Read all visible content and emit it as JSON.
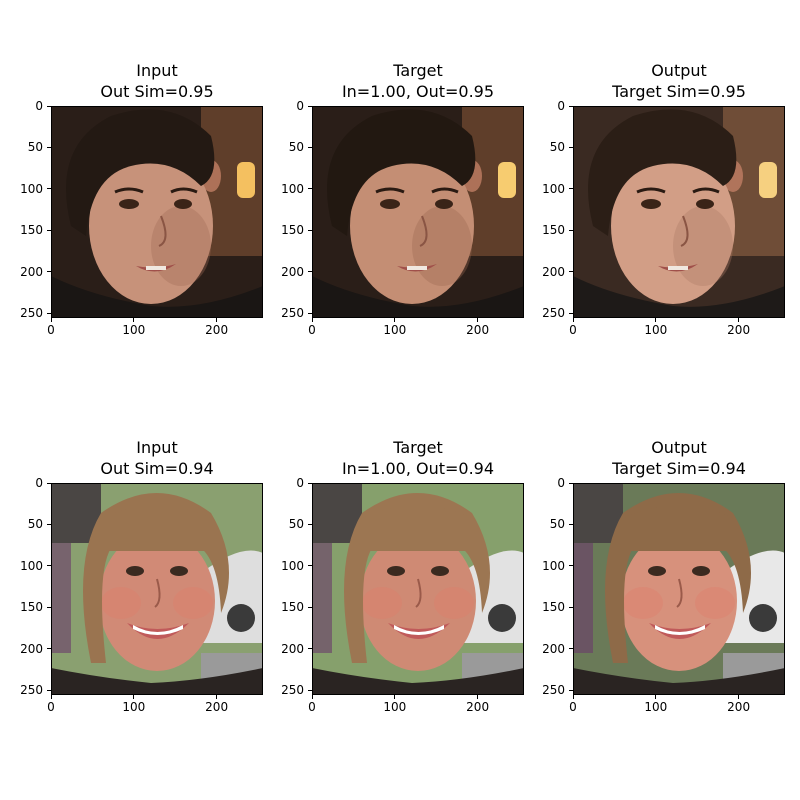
{
  "panels": [
    {
      "name": "input-row1",
      "title_line1": "Input",
      "title_line2": "Out Sim=0.95",
      "palette": {
        "bg": "#2a1e18",
        "bg2": "#8a5a3a",
        "skin": "#c7927a",
        "skin2": "#a06a55",
        "hair": "#231913",
        "cloth": "#1a1614",
        "light": "#f4c060"
      }
    },
    {
      "name": "target-row1",
      "title_line1": "Target",
      "title_line2": "In=1.00, Out=0.95",
      "palette": {
        "bg": "#2a1e18",
        "bg2": "#8a5a3a",
        "skin": "#c48e74",
        "skin2": "#9c6650",
        "hair": "#221811",
        "cloth": "#1a1614",
        "light": "#f7cc70"
      }
    },
    {
      "name": "output-row1",
      "title_line1": "Output",
      "title_line2": "Target Sim=0.95",
      "palette": {
        "bg": "#3a2a22",
        "bg2": "#9a6a48",
        "skin": "#d29e86",
        "skin2": "#ad7864",
        "hair": "#2b1e16",
        "cloth": "#1e1a18",
        "light": "#f6d080"
      }
    },
    {
      "name": "input-row2",
      "title_line1": "Input",
      "title_line2": "Out Sim=0.94",
      "palette": {
        "bg": "#8aa070",
        "bg2": "#dedede",
        "skin": "#d18a76",
        "skin2": "#b46e5e",
        "hair": "#9a7450",
        "cloth": "#2a2422",
        "light": "#ffffff"
      }
    },
    {
      "name": "target-row2",
      "title_line1": "Target",
      "title_line2": "In=1.00, Out=0.94",
      "palette": {
        "bg": "#86a06c",
        "bg2": "#e2e2e2",
        "skin": "#cf8a74",
        "skin2": "#b06c5a",
        "hair": "#9c7652",
        "cloth": "#2a2422",
        "light": "#ffffff"
      }
    },
    {
      "name": "output-row2",
      "title_line1": "Output",
      "title_line2": "Target Sim=0.94",
      "palette": {
        "bg": "#6a7a58",
        "bg2": "#e8e8e8",
        "skin": "#d7917c",
        "skin2": "#b87462",
        "hair": "#8e6a48",
        "cloth": "#2a2422",
        "light": "#ffffff"
      }
    }
  ],
  "axes": {
    "x_ticks": [
      "0",
      "100",
      "200"
    ],
    "y_ticks": [
      "0",
      "50",
      "100",
      "150",
      "200",
      "250"
    ]
  }
}
